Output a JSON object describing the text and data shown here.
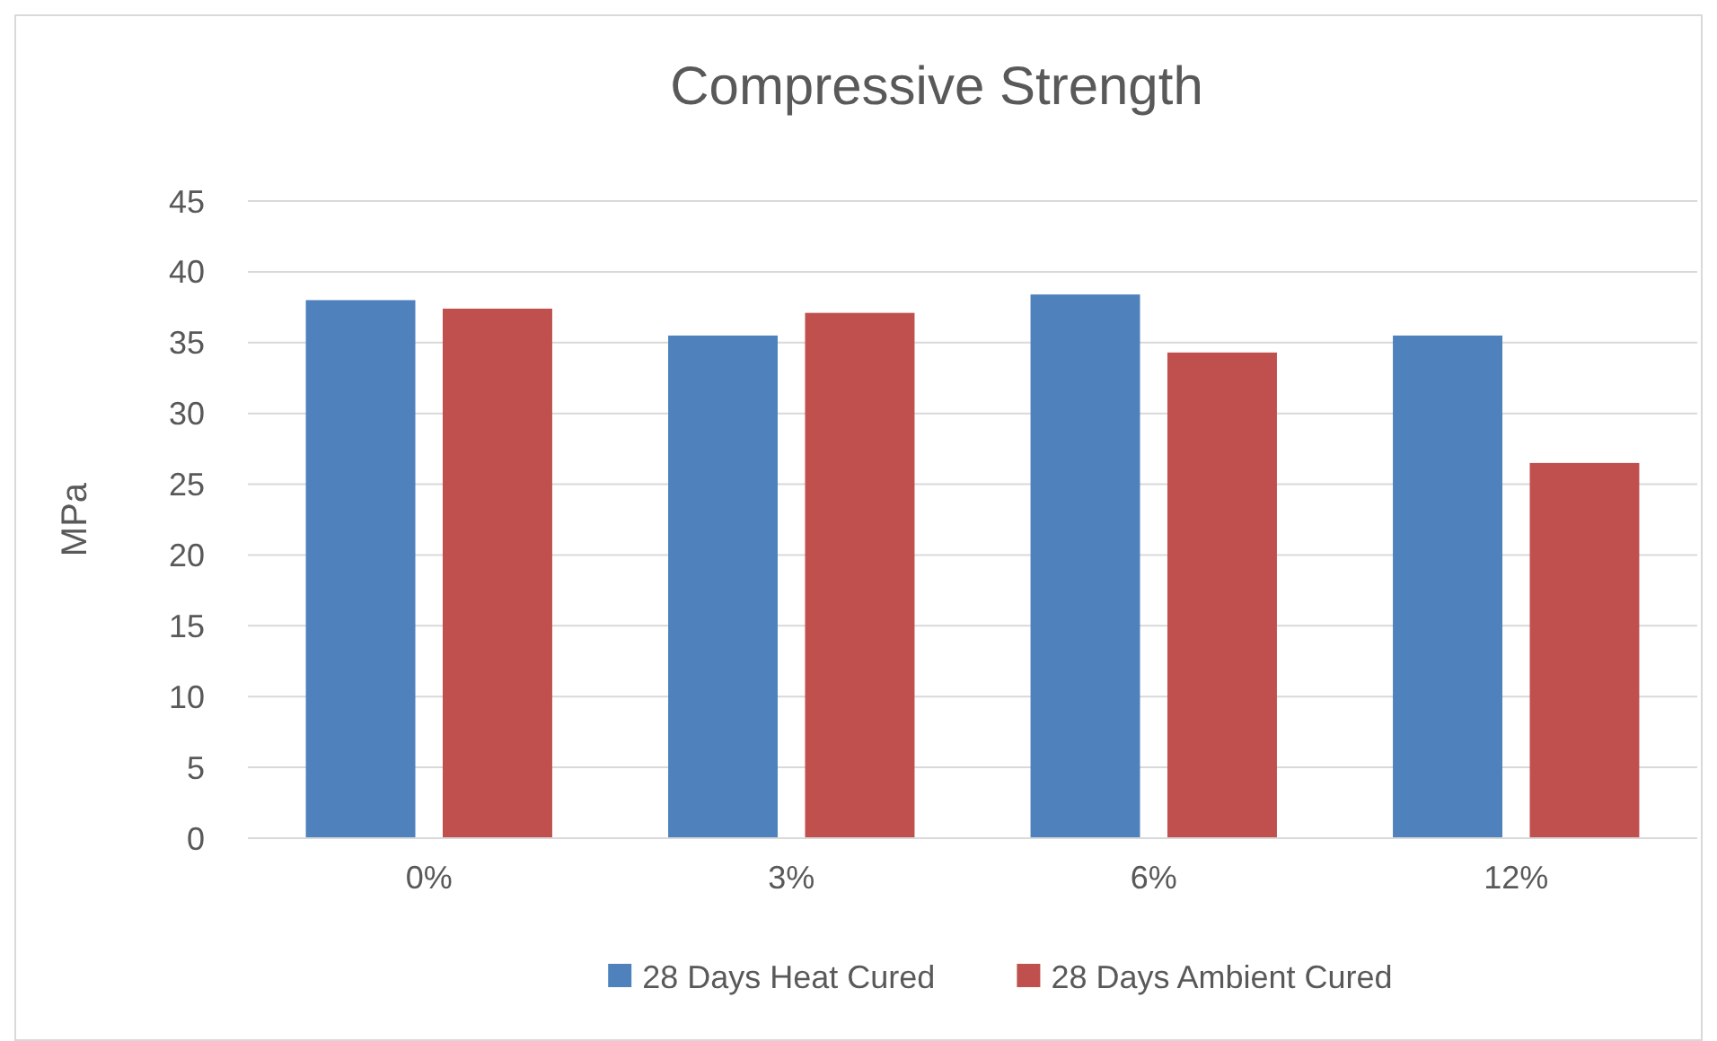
{
  "chart_data": {
    "type": "bar",
    "title": "Compressive Strength",
    "ylabel": "MPa",
    "categories": [
      "0%",
      "3%",
      "6%",
      "12%"
    ],
    "series": [
      {
        "name": "28 Days Heat Cured",
        "color": "#4f81bd",
        "values": [
          38.0,
          35.5,
          38.4,
          35.5
        ]
      },
      {
        "name": "28 Days Ambient Cured",
        "color": "#c0504d",
        "values": [
          37.4,
          37.1,
          34.3,
          26.5
        ]
      }
    ],
    "ylim": [
      0,
      45
    ],
    "yticks": [
      0,
      5,
      10,
      15,
      20,
      25,
      30,
      35,
      40,
      45
    ],
    "grid": "y",
    "legend": "bottom"
  }
}
